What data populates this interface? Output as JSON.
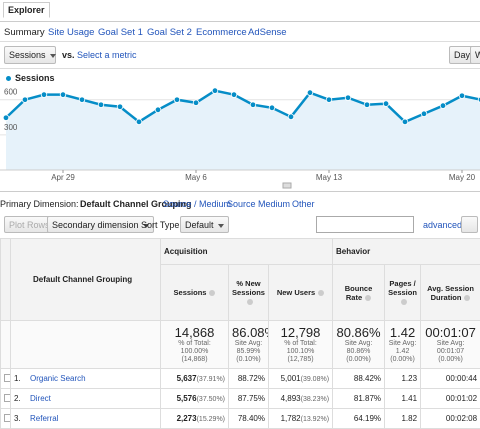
{
  "header": {
    "title": "Explorer"
  },
  "tabs": [
    "Summary",
    "Site Usage",
    "Goal Set 1",
    "Goal Set 2",
    "Ecommerce",
    "AdSense"
  ],
  "metric": {
    "selected": "Sessions",
    "vs": "vs.",
    "other": "Select a metric"
  },
  "period_buttons": [
    "Day",
    "W"
  ],
  "chart_data": {
    "type": "line",
    "categories": [
      null,
      null,
      null,
      "Apr 29",
      null,
      null,
      null,
      null,
      null,
      null,
      "May 6",
      null,
      null,
      null,
      null,
      null,
      null,
      "May 13",
      null,
      null,
      null,
      null,
      null,
      null,
      "May 20",
      null
    ],
    "series": [
      {
        "name": "Sessions",
        "color": "#058dc7",
        "values": [
          446,
          600,
          643,
          643,
          600,
          557,
          540,
          411,
          514,
          600,
          574,
          677,
          643,
          557,
          531,
          454,
          660,
          600,
          617,
          557,
          566,
          411,
          480,
          549,
          634,
          600
        ]
      }
    ],
    "ylim": [
      0,
      700
    ],
    "yticks": [
      300,
      600
    ],
    "grid": true
  },
  "dimension_bar": {
    "label": "Primary Dimension:",
    "selected": "Default Channel Grouping",
    "options": [
      "Source / Medium",
      "Source",
      "Medium",
      "Other"
    ]
  },
  "toolbar": {
    "plot_rows": "Plot Rows",
    "secondary": "Secondary dimension",
    "sort_label": "Sort Type:",
    "sort": "Default",
    "advanced": "advanced"
  },
  "table": {
    "groups": [
      "Acquisition",
      "Behavior"
    ],
    "dimension_header": "Default Channel Grouping",
    "columns": [
      "Sessions",
      "% New Sessions",
      "New Users",
      "Bounce Rate",
      "Pages / Session",
      "Avg. Session Duration"
    ],
    "totals": [
      {
        "value": "14,868",
        "note": [
          "% of Total:",
          "100.00%",
          "(14,868)"
        ]
      },
      {
        "value": "86.08%",
        "note": [
          "Site Avg:",
          "85.99%",
          "(0.10%)"
        ]
      },
      {
        "value": "12,798",
        "note": [
          "% of Total:",
          "100.10%",
          "(12,785)"
        ]
      },
      {
        "value": "80.86%",
        "note": [
          "Site Avg:",
          "80.86%",
          "(0.00%)"
        ]
      },
      {
        "value": "1.42",
        "note": [
          "Site Avg:",
          "1.42",
          "(0.00%)"
        ]
      },
      {
        "value": "00:01:07",
        "note": [
          "Site Avg:",
          "00:01:07",
          "(0.00%)"
        ]
      }
    ],
    "rows": [
      {
        "index": "1.",
        "name": "Organic Search",
        "cells": [
          [
            "5,637",
            "(37.91%)"
          ],
          [
            "88.72%"
          ],
          [
            "5,001",
            "(39.08%)"
          ],
          [
            "88.42%"
          ],
          [
            "1.23"
          ],
          [
            "00:00:44"
          ]
        ]
      },
      {
        "index": "2.",
        "name": "Direct",
        "cells": [
          [
            "5,576",
            "(37.50%)"
          ],
          [
            "87.75%"
          ],
          [
            "4,893",
            "(38.23%)"
          ],
          [
            "81.87%"
          ],
          [
            "1.41"
          ],
          [
            "00:01:02"
          ]
        ]
      },
      {
        "index": "3.",
        "name": "Referral",
        "cells": [
          [
            "2,273",
            "(15.29%)"
          ],
          [
            "78.40%"
          ],
          [
            "1,782",
            "(13.92%)"
          ],
          [
            "64.19%"
          ],
          [
            "1.82"
          ],
          [
            "00:02:08"
          ]
        ]
      }
    ]
  }
}
